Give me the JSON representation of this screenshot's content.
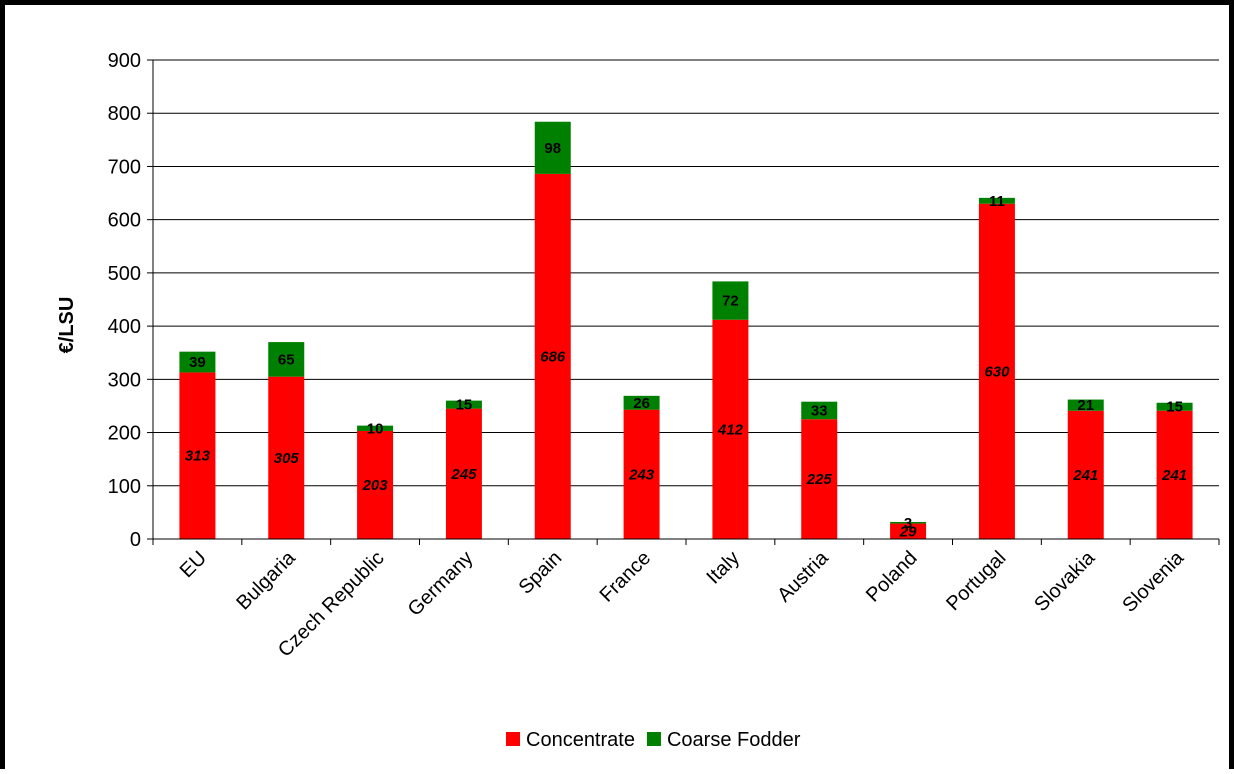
{
  "chart_data": {
    "type": "bar",
    "stacked": true,
    "title": "",
    "xlabel": "",
    "ylabel": "€/LSU",
    "ylim": [
      0,
      900
    ],
    "yticks": [
      0,
      100,
      200,
      300,
      400,
      500,
      600,
      700,
      800,
      900
    ],
    "categories": [
      "EU",
      "Bulgaria",
      "Czech Republic",
      "Germany",
      "Spain",
      "France",
      "Italy",
      "Austria",
      "Poland",
      "Portugal",
      "Slovakia",
      "Slovenia"
    ],
    "series": [
      {
        "name": "Concentrate",
        "color": "#ff0000",
        "values": [
          313,
          305,
          203,
          245,
          686,
          243,
          412,
          225,
          29,
          630,
          241,
          241
        ]
      },
      {
        "name": "Coarse Fodder",
        "color": "#008000",
        "values": [
          39,
          65,
          10,
          15,
          98,
          26,
          72,
          33,
          3,
          11,
          21,
          15
        ]
      }
    ],
    "grid": "horizontal",
    "legend": "bottom"
  }
}
